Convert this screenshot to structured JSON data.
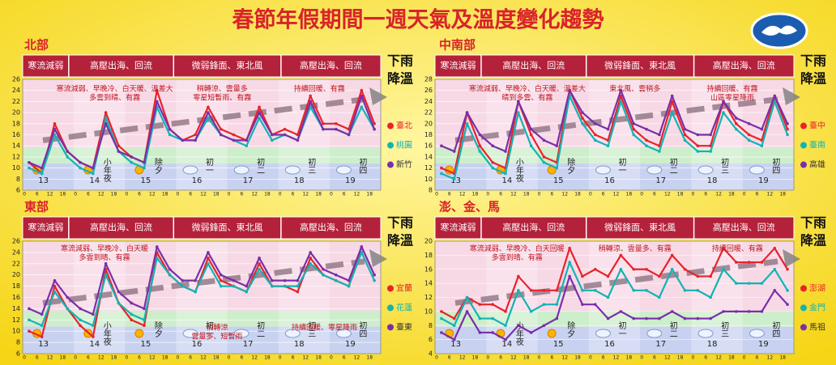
{
  "title": "春節年假期間一週天氣及溫度變化趨勢",
  "chart_data": [
    {
      "type": "line",
      "title": "北部",
      "header": [
        "寒流減弱",
        "高壓出海、回流",
        "微弱鋒面、東北風",
        "高壓出海、回流"
      ],
      "side_note": [
        "下雨",
        "降溫"
      ],
      "categories": [
        "0",
        "6",
        "12",
        "18",
        "0",
        "6",
        "12",
        "18",
        "0",
        "6",
        "12",
        "18",
        "0",
        "6",
        "12",
        "18",
        "0",
        "6",
        "12",
        "18",
        "0",
        "6",
        "12",
        "18",
        "0",
        "6",
        "12",
        "18"
      ],
      "days": [
        "13",
        "14",
        "15",
        "16",
        "17",
        "18",
        "19"
      ],
      "day_notes": [
        null,
        "小年夜",
        "除夕",
        "初一",
        "初二",
        "初三",
        "初四"
      ],
      "ylim": [
        6,
        26
      ],
      "yticks": [
        6,
        8,
        10,
        12,
        14,
        16,
        18,
        20,
        22,
        24,
        26
      ],
      "annotations": [
        [
          "寒流減弱、早晚冷、白天暖、溫差大",
          "多雲到晴、有霧"
        ],
        [
          "稍轉涼、雲量多",
          "零星短暫雨、有霧"
        ],
        [
          "持續回暖、有霧"
        ]
      ],
      "series": [
        {
          "name": "臺北",
          "color": "#e8232a",
          "values": [
            11,
            9,
            18,
            13,
            11,
            10,
            20,
            14,
            12,
            11,
            24,
            17,
            15,
            16,
            21,
            17,
            16,
            15,
            21,
            16,
            17,
            16,
            23,
            18,
            18,
            17,
            24,
            18
          ]
        },
        {
          "name": "桃園",
          "color": "#14b3b3",
          "values": [
            10,
            9,
            16,
            12,
            10,
            9,
            19,
            13,
            11,
            10,
            21,
            16,
            15,
            15,
            19,
            16,
            15,
            14,
            19,
            15,
            16,
            15,
            21,
            17,
            17,
            16,
            21,
            17
          ]
        },
        {
          "name": "新竹",
          "color": "#7a2fa8",
          "values": [
            11,
            10,
            17,
            13,
            11,
            10,
            18,
            13,
            12,
            11,
            22,
            17,
            15,
            15,
            20,
            16,
            15,
            15,
            20,
            16,
            16,
            15,
            22,
            17,
            17,
            16,
            23,
            17
          ]
        }
      ]
    },
    {
      "type": "line",
      "title": "中南部",
      "header": [
        "寒流減弱",
        "高壓出海、回流",
        "微弱鋒面、東北風",
        "高壓出海、回流"
      ],
      "side_note": [
        "下雨",
        "降溫"
      ],
      "categories": [
        "0",
        "6",
        "12",
        "18",
        "0",
        "6",
        "12",
        "18",
        "0",
        "6",
        "12",
        "18",
        "0",
        "6",
        "12",
        "18",
        "0",
        "6",
        "12",
        "18",
        "0",
        "6",
        "12",
        "18",
        "0",
        "6",
        "12",
        "18"
      ],
      "days": [
        "13",
        "14",
        "15",
        "16",
        "17",
        "18",
        "19"
      ],
      "day_notes": [
        null,
        "小年夜",
        "除夕",
        "初一",
        "初二",
        "初三",
        "初四"
      ],
      "ylim": [
        8,
        28
      ],
      "yticks": [
        8,
        10,
        12,
        14,
        16,
        18,
        20,
        22,
        24,
        26,
        28
      ],
      "annotations": [
        [
          "寒流減弱、早晚冷、白天暖、溫差大",
          "晴到多雲、有霧"
        ],
        [
          "東北風、雲稍多"
        ],
        [
          "持續回暖、有霧",
          "山區零星降雨"
        ]
      ],
      "series": [
        {
          "name": "臺中",
          "color": "#e8232a",
          "values": [
            12,
            11,
            22,
            16,
            13,
            12,
            24,
            18,
            14,
            13,
            26,
            21,
            18,
            17,
            25,
            19,
            17,
            16,
            24,
            18,
            16,
            16,
            24,
            20,
            18,
            17,
            25,
            19
          ]
        },
        {
          "name": "臺南",
          "color": "#14b3b3",
          "values": [
            11,
            10,
            20,
            15,
            12,
            11,
            22,
            16,
            13,
            12,
            25,
            20,
            17,
            16,
            24,
            18,
            16,
            15,
            22,
            17,
            15,
            15,
            22,
            19,
            17,
            16,
            24,
            18
          ]
        },
        {
          "name": "高雄",
          "color": "#7a2fa8",
          "values": [
            16,
            15,
            22,
            18,
            16,
            15,
            24,
            19,
            17,
            16,
            26,
            22,
            20,
            19,
            26,
            20,
            19,
            18,
            25,
            19,
            18,
            18,
            24,
            21,
            20,
            19,
            25,
            20
          ]
        }
      ]
    },
    {
      "type": "line",
      "title": "東部",
      "header": [
        "寒流減弱",
        "高壓出海、回流",
        "微弱鋒面、東北風",
        "高壓出海、回流"
      ],
      "side_note": [
        "下雨",
        "降溫"
      ],
      "categories": [
        "0",
        "6",
        "12",
        "18",
        "0",
        "6",
        "12",
        "18",
        "0",
        "6",
        "12",
        "18",
        "0",
        "6",
        "12",
        "18",
        "0",
        "6",
        "12",
        "18",
        "0",
        "6",
        "12",
        "18",
        "0",
        "6",
        "12",
        "18"
      ],
      "days": [
        "13",
        "14",
        "15",
        "16",
        "17",
        "18",
        "19"
      ],
      "day_notes": [
        null,
        "小年夜",
        "除夕",
        "初一",
        "初二",
        "初三",
        "初四"
      ],
      "ylim": [
        6,
        26
      ],
      "yticks": [
        6,
        8,
        10,
        12,
        14,
        16,
        18,
        20,
        22,
        24,
        26
      ],
      "annotations": [
        [
          "寒流減弱、早晚冷、白天暖",
          "多雲到晴、有霧"
        ],
        [
          "稍轉涼",
          "雲量多、短暫雨"
        ],
        [
          "持續回暖、零星降雨"
        ]
      ],
      "series": [
        {
          "name": "宜蘭",
          "color": "#e8232a",
          "values": [
            10,
            9,
            18,
            14,
            11,
            9,
            21,
            15,
            12,
            11,
            24,
            20,
            18,
            17,
            23,
            19,
            18,
            17,
            22,
            18,
            18,
            17,
            23,
            20,
            19,
            18,
            25,
            20
          ]
        },
        {
          "name": "花蓮",
          "color": "#14b3b3",
          "values": [
            12,
            11,
            17,
            14,
            12,
            11,
            20,
            15,
            13,
            12,
            23,
            20,
            18,
            17,
            22,
            18,
            18,
            17,
            21,
            18,
            18,
            18,
            22,
            20,
            19,
            18,
            24,
            19
          ]
        },
        {
          "name": "臺東",
          "color": "#7a2fa8",
          "values": [
            14,
            13,
            19,
            16,
            14,
            13,
            22,
            17,
            15,
            14,
            25,
            21,
            19,
            19,
            24,
            20,
            19,
            18,
            23,
            19,
            19,
            19,
            24,
            21,
            20,
            19,
            25,
            20
          ]
        }
      ]
    },
    {
      "type": "line",
      "title": "澎、金、馬",
      "header": [
        "寒流減弱",
        "高壓出海、回流",
        "微弱鋒面、東北風",
        "高壓出海、回流"
      ],
      "side_note": [
        "下雨",
        "降溫"
      ],
      "categories": [
        "0",
        "6",
        "12",
        "18",
        "0",
        "6",
        "12",
        "18",
        "0",
        "6",
        "12",
        "18",
        "0",
        "6",
        "12",
        "18",
        "0",
        "6",
        "12",
        "18",
        "0",
        "6",
        "12",
        "18",
        "0",
        "6",
        "12",
        "18"
      ],
      "days": [
        "13",
        "14",
        "15",
        "16",
        "17",
        "18",
        "19"
      ],
      "day_notes": [
        null,
        "小年夜",
        "除夕",
        "初一",
        "初二",
        "初三",
        "初四"
      ],
      "ylim": [
        4,
        20
      ],
      "yticks": [
        4,
        6,
        8,
        10,
        12,
        14,
        16,
        18,
        20
      ],
      "annotations": [
        [
          "寒流減弱、早晚冷、白天回暖",
          "多雲到晴、有霧"
        ],
        [
          "稍轉涼、雲量多、有霧"
        ],
        [
          "持續回暖、有霧"
        ]
      ],
      "series": [
        {
          "name": "澎湖",
          "color": "#e8232a",
          "values": [
            10,
            9,
            12,
            11,
            11,
            10,
            15,
            13,
            13,
            13,
            19,
            15,
            16,
            15,
            18,
            16,
            16,
            15,
            18,
            16,
            15,
            15,
            19,
            17,
            17,
            17,
            19,
            16
          ]
        },
        {
          "name": "金門",
          "color": "#14b3b3",
          "values": [
            9,
            8,
            12,
            9,
            9,
            8,
            13,
            10,
            11,
            11,
            17,
            13,
            13,
            12,
            16,
            13,
            13,
            12,
            16,
            13,
            13,
            12,
            16,
            14,
            14,
            14,
            16,
            13
          ]
        },
        {
          "name": "馬祖",
          "color": "#7a2fa8",
          "values": [
            7,
            6,
            10,
            7,
            7,
            6,
            8,
            7,
            8,
            9,
            15,
            11,
            11,
            9,
            10,
            9,
            9,
            9,
            10,
            9,
            9,
            9,
            10,
            10,
            10,
            10,
            13,
            11
          ]
        }
      ]
    }
  ]
}
